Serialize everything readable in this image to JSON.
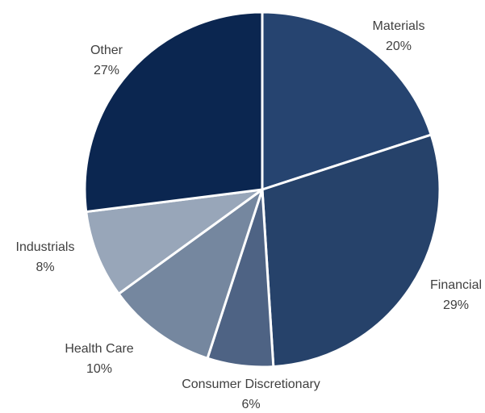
{
  "chart_data": {
    "type": "pie",
    "title": "",
    "start_angle_deg": 0,
    "direction": "clockwise",
    "slices": [
      {
        "label": "Materials",
        "value": 20,
        "display": "20%",
        "color": "#264470"
      },
      {
        "label": "Financial",
        "value": 29,
        "display": "29%",
        "color": "#26426A"
      },
      {
        "label": "Consumer Discretionary",
        "value": 6,
        "display": "6%",
        "color": "#4E6384"
      },
      {
        "label": "Health Care",
        "value": 10,
        "display": "10%",
        "color": "#75879F"
      },
      {
        "label": "Industrials",
        "value": 8,
        "display": "8%",
        "color": "#98A6B9"
      },
      {
        "label": "Other",
        "value": 27,
        "display": "27%",
        "color": "#0B2650"
      }
    ]
  }
}
